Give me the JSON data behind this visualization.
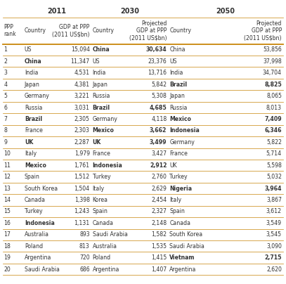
{
  "title_2011": "2011",
  "title_2030": "2030",
  "title_2050": "2050",
  "col_headers": [
    "PPP\nrank",
    "Country",
    "GDP at PPP\n(2011 US$bn)",
    "Country",
    "Projected\nGDP at PPP\n(2011 US$bn)",
    "Country",
    "Projected\nGDP at PPP\n(2011 US$bn)"
  ],
  "rows": [
    [
      1,
      "US",
      "15,094",
      "China",
      "30,634",
      "China",
      "53,856"
    ],
    [
      2,
      "China",
      "11,347",
      "US",
      "23,376",
      "US",
      "37,998"
    ],
    [
      3,
      "India",
      "4,531",
      "India",
      "13,716",
      "India",
      "34,704"
    ],
    [
      4,
      "Japan",
      "4,381",
      "Japan",
      "5,842",
      "Brazil",
      "8,825"
    ],
    [
      5,
      "Germany",
      "3,221",
      "Russia",
      "5,308",
      "Japan",
      "8,065"
    ],
    [
      6,
      "Russia",
      "3,031",
      "Brazil",
      "4,685",
      "Russia",
      "8,013"
    ],
    [
      7,
      "Brazil",
      "2,305",
      "Germany",
      "4,118",
      "Mexico",
      "7,409"
    ],
    [
      8,
      "France",
      "2,303",
      "Mexico",
      "3,662",
      "Indonesia",
      "6,346"
    ],
    [
      9,
      "UK",
      "2,287",
      "UK",
      "3,499",
      "Germany",
      "5,822"
    ],
    [
      10,
      "Italy",
      "1,979",
      "France",
      "3,427",
      "France",
      "5,714"
    ],
    [
      11,
      "Mexico",
      "1,761",
      "Indonesia",
      "2,912",
      "UK",
      "5,598"
    ],
    [
      12,
      "Spain",
      "1,512",
      "Turkey",
      "2,760",
      "Turkey",
      "5,032"
    ],
    [
      13,
      "South Korea",
      "1,504",
      "Italy",
      "2,629",
      "Nigeria",
      "3,964"
    ],
    [
      14,
      "Canada",
      "1,398",
      "Korea",
      "2,454",
      "Italy",
      "3,867"
    ],
    [
      15,
      "Turkey",
      "1,243",
      "Spain",
      "2,327",
      "Spain",
      "3,612"
    ],
    [
      16,
      "Indonesia",
      "1,131",
      "Canada",
      "2,148",
      "Canada",
      "3,549"
    ],
    [
      17,
      "Australia",
      "893",
      "Saudi Arabia",
      "1,582",
      "South Korea",
      "3,545"
    ],
    [
      18,
      "Poland",
      "813",
      "Australia",
      "1,535",
      "Saudi Arabia",
      "3,090"
    ],
    [
      19,
      "Argentina",
      "720",
      "Poland",
      "1,415",
      "Vietnam",
      "2,715"
    ],
    [
      20,
      "Saudi Arabia",
      "686",
      "Argentina",
      "1,407",
      "Argentina",
      "2,620"
    ]
  ],
  "bold_2011": [
    "China",
    "Brazil",
    "UK",
    "Mexico",
    "Indonesia"
  ],
  "bold_2030": [
    "China",
    "Brazil",
    "Mexico",
    "UK",
    "Indonesia"
  ],
  "bold_2050": [
    "Brazil",
    "Mexico",
    "Indonesia",
    "Nigeria",
    "Vietnam"
  ],
  "bg_color": "#ffffff",
  "line_color": "#c8860a",
  "text_color": "#333333",
  "col_starts": [
    0.0,
    0.072,
    0.2,
    0.315,
    0.455,
    0.59,
    0.745
  ],
  "col_ends": [
    0.072,
    0.2,
    0.315,
    0.455,
    0.59,
    0.745,
    1.0
  ]
}
